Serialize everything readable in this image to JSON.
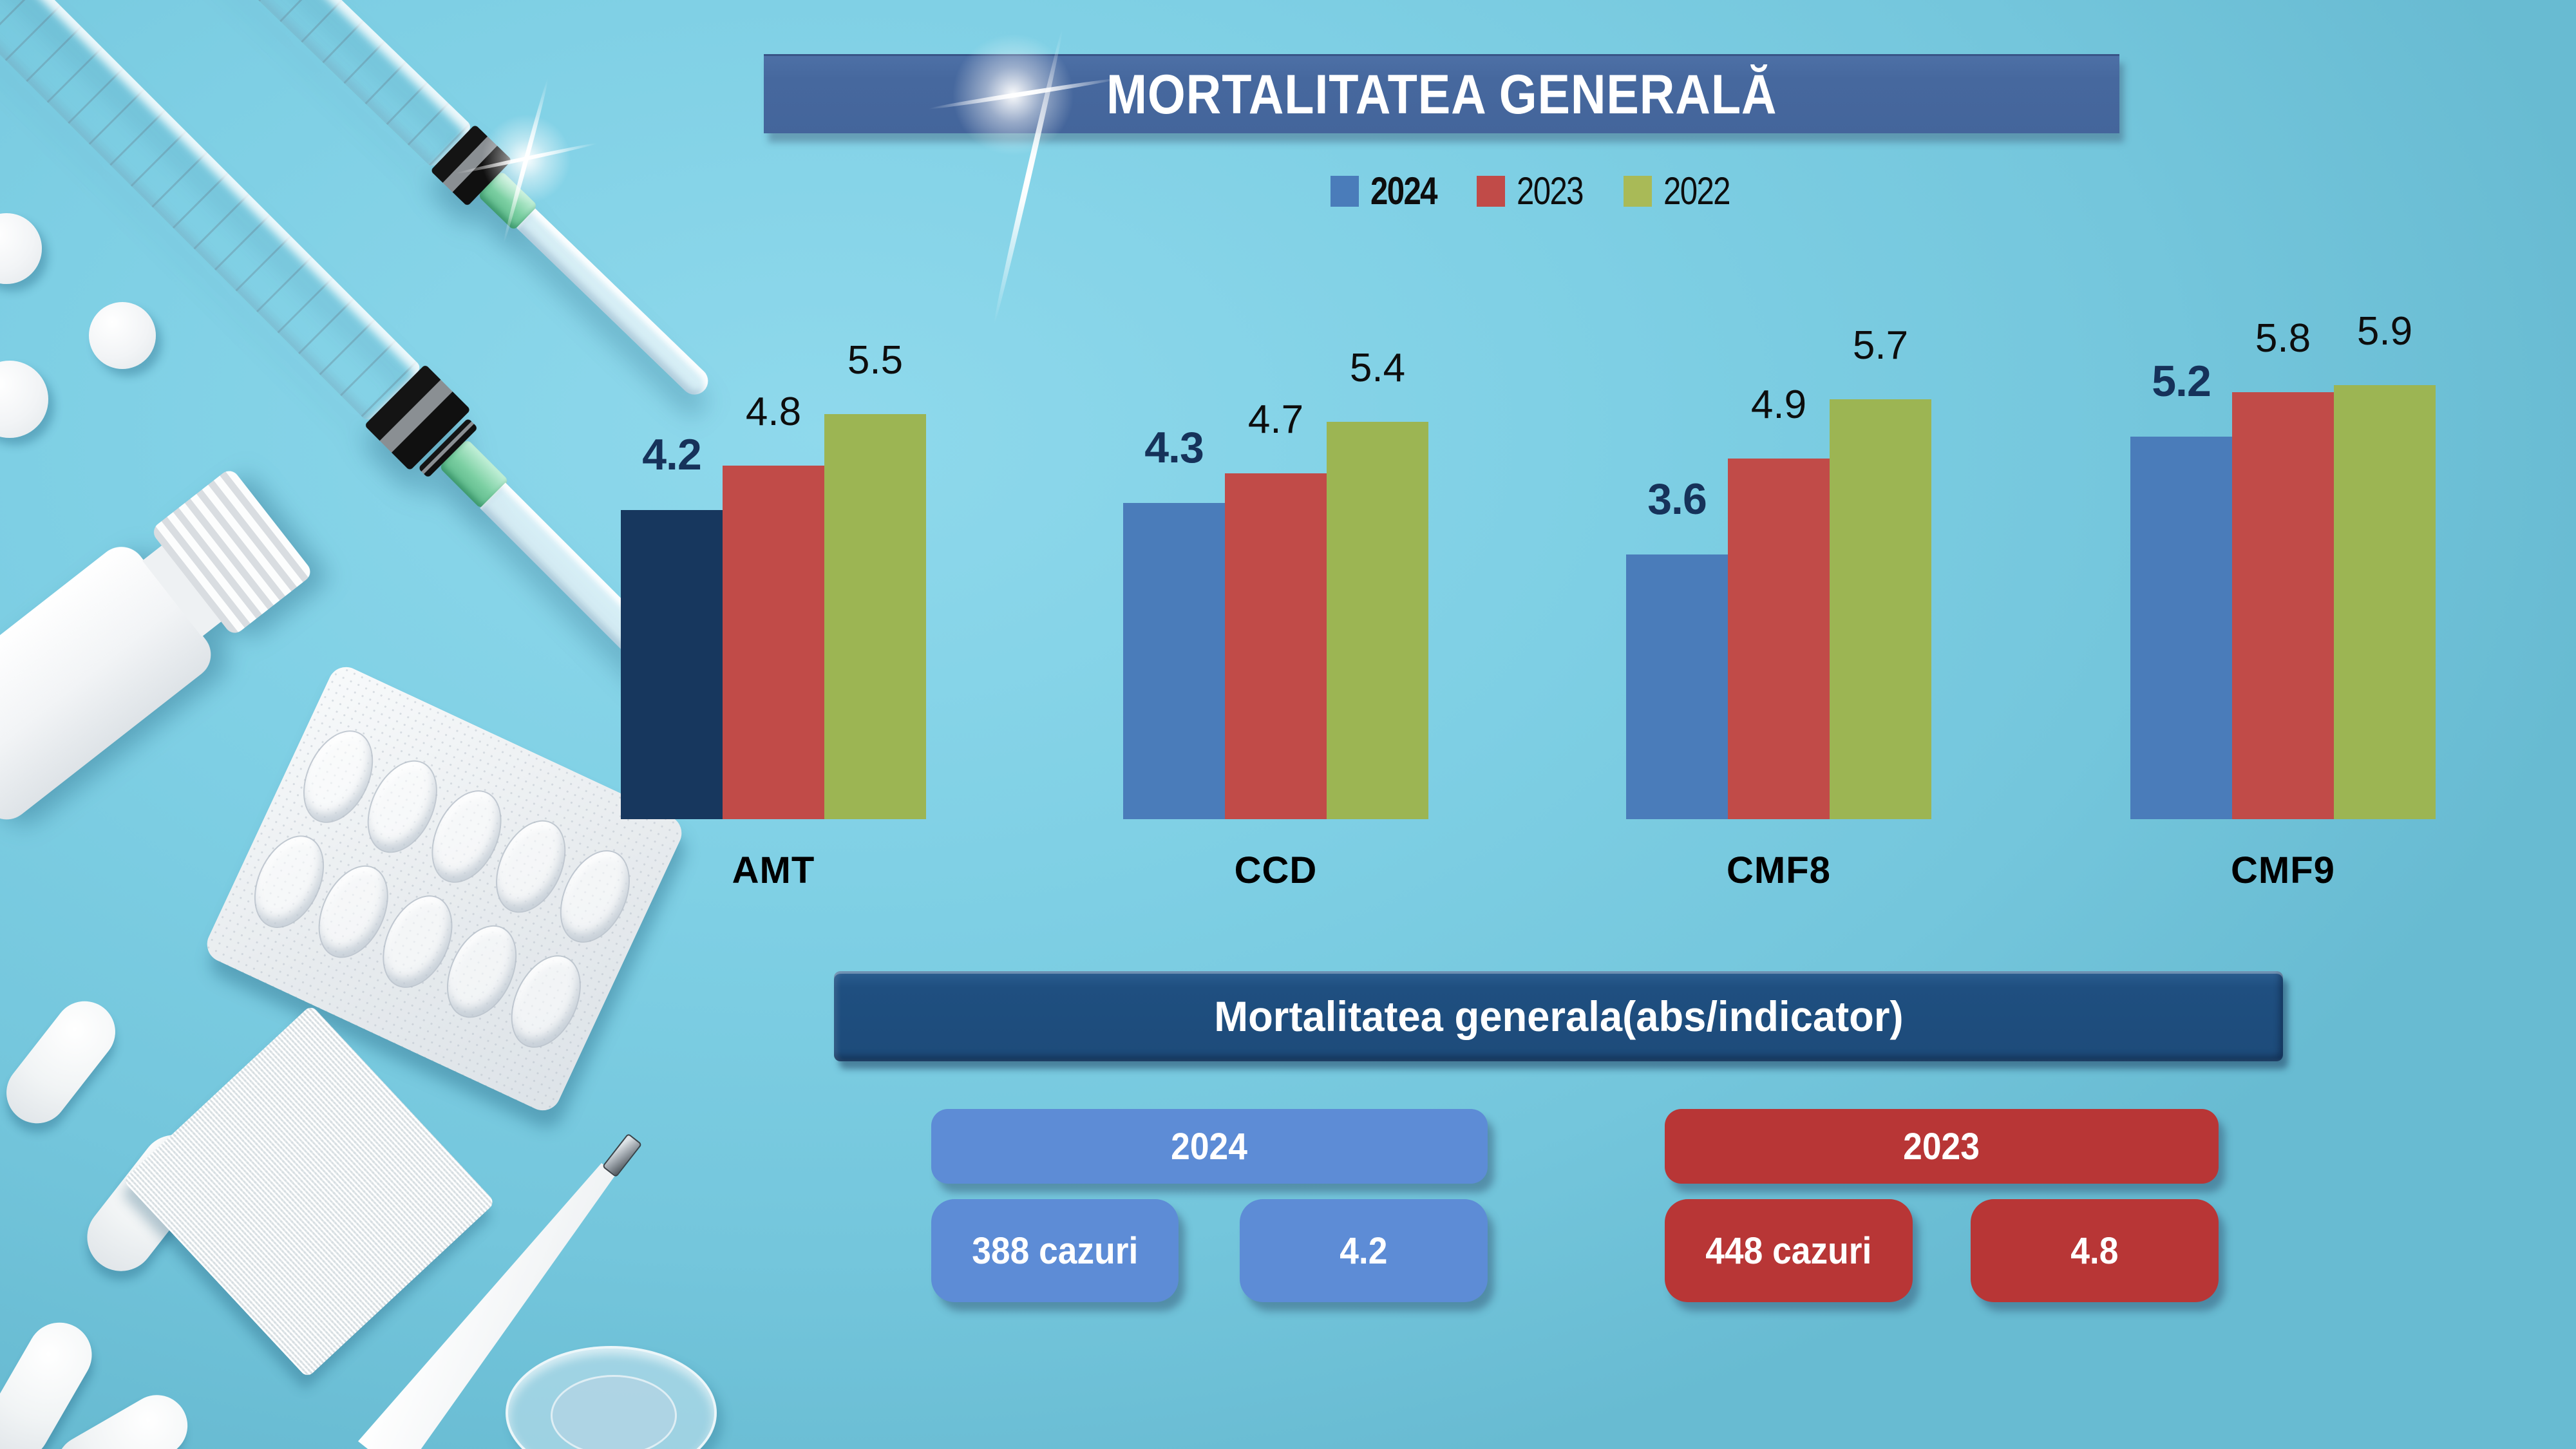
{
  "header": {
    "title": "MORTALITATEA GENERALĂ"
  },
  "legend": {
    "items": [
      {
        "label": "2024",
        "color": "#4a7cba",
        "bold": true
      },
      {
        "label": "2023",
        "color": "#c14b48",
        "bold": false
      },
      {
        "label": "2022",
        "color": "#a9ba57",
        "bold": false
      }
    ]
  },
  "chart_data": {
    "type": "bar",
    "title": "MORTALITATEA GENERALĂ",
    "categories": [
      "AMT",
      "CCD",
      "CMF8",
      "CMF9"
    ],
    "series": [
      {
        "name": "2024",
        "values": [
          4.2,
          4.3,
          3.6,
          5.2
        ],
        "color": "#4a7cba",
        "bar_colors": [
          "#17375e",
          "#4a7cba",
          "#4a7cba",
          "#4a7cba"
        ],
        "label_color": "#16325a",
        "label_bold": true
      },
      {
        "name": "2023",
        "values": [
          4.8,
          4.7,
          4.9,
          5.8
        ],
        "color": "#c14b48",
        "label_color": "#0d0d0d",
        "label_bold": false
      },
      {
        "name": "2022",
        "values": [
          5.5,
          5.4,
          5.7,
          5.9
        ],
        "color": "#9cb553",
        "label_color": "#0d0d0d",
        "label_bold": false
      }
    ],
    "xlabel": "",
    "ylabel": "",
    "ylim": [
      0,
      6.2
    ],
    "grid": false,
    "value_labels": true,
    "legend_position": "top"
  },
  "summary": {
    "banner": "Mortalitatea generala(abs/indicator)",
    "groups": [
      {
        "year": "2024",
        "cases": "388 cazuri",
        "rate": "4.2",
        "color": "#5d8cd6"
      },
      {
        "year": "2023",
        "cases": "448 cazuri",
        "rate": "4.8",
        "color": "#b83636"
      }
    ]
  },
  "colors": {
    "background": "#7ccde1",
    "title_banner": "#46689e",
    "summary_banner": "#1d4b7a",
    "highlight_navy": "#17375e"
  }
}
